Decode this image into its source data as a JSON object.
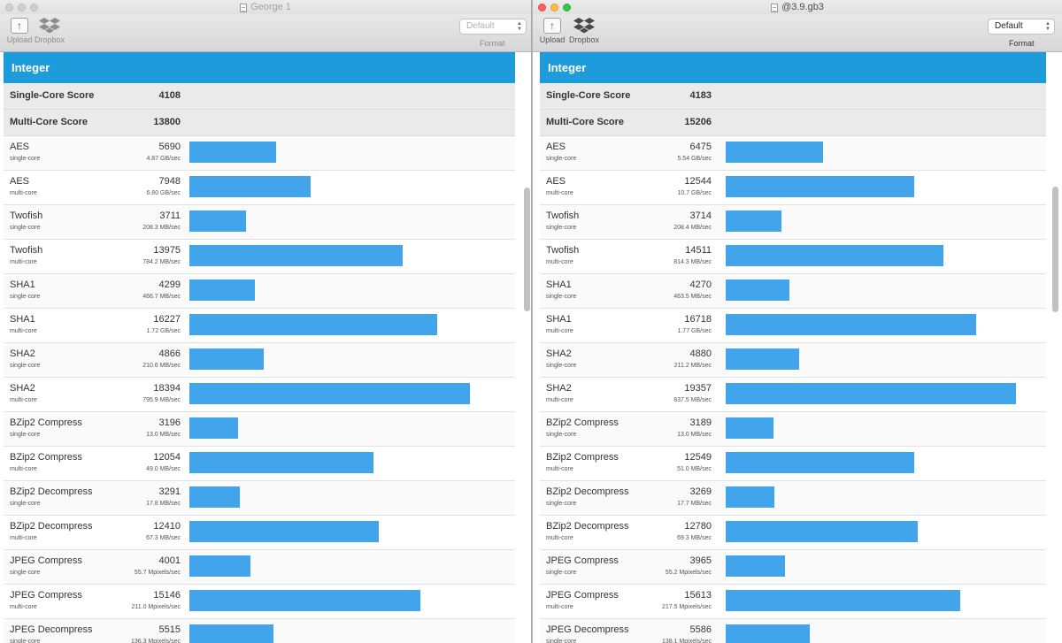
{
  "bar_scale_max": 21000,
  "colors": {
    "accent": "#1e9bdb",
    "bar": "#42a4ea"
  },
  "icons": {
    "upload": "upload-arrow-icon",
    "dropbox": "dropbox-icon",
    "document": "document-icon"
  },
  "windows": [
    {
      "title": "George 1",
      "toolbar": {
        "upload_label": "Upload",
        "dropbox_label": "Dropbox",
        "format_value": "Default",
        "format_label": "Format"
      },
      "section": "Integer",
      "single_core_label": "Single-Core Score",
      "single_core_score": "4108",
      "multi_core_label": "Multi-Core Score",
      "multi_core_score": "13800",
      "benchmarks": [
        {
          "name": "AES",
          "mode": "single-core",
          "score": "5690",
          "rate": "4.87 GB/sec"
        },
        {
          "name": "AES",
          "mode": "multi-core",
          "score": "7948",
          "rate": "6.80 GB/sec"
        },
        {
          "name": "Twofish",
          "mode": "single-core",
          "score": "3711",
          "rate": "208.3 MB/sec"
        },
        {
          "name": "Twofish",
          "mode": "multi-core",
          "score": "13975",
          "rate": "784.2 MB/sec"
        },
        {
          "name": "SHA1",
          "mode": "single-core",
          "score": "4299",
          "rate": "466.7 MB/sec"
        },
        {
          "name": "SHA1",
          "mode": "multi-core",
          "score": "16227",
          "rate": "1.72 GB/sec"
        },
        {
          "name": "SHA2",
          "mode": "single-core",
          "score": "4866",
          "rate": "210.6 MB/sec"
        },
        {
          "name": "SHA2",
          "mode": "multi-core",
          "score": "18394",
          "rate": "795.9 MB/sec"
        },
        {
          "name": "BZip2 Compress",
          "mode": "single-core",
          "score": "3196",
          "rate": "13.0 MB/sec"
        },
        {
          "name": "BZip2 Compress",
          "mode": "multi-core",
          "score": "12054",
          "rate": "49.0 MB/sec"
        },
        {
          "name": "BZip2 Decompress",
          "mode": "single-core",
          "score": "3291",
          "rate": "17.8 MB/sec"
        },
        {
          "name": "BZip2 Decompress",
          "mode": "multi-core",
          "score": "12410",
          "rate": "67.3 MB/sec"
        },
        {
          "name": "JPEG Compress",
          "mode": "single-core",
          "score": "4001",
          "rate": "55.7 Mpixels/sec"
        },
        {
          "name": "JPEG Compress",
          "mode": "multi-core",
          "score": "15146",
          "rate": "211.0 Mpixels/sec"
        },
        {
          "name": "JPEG Decompress",
          "mode": "single-core",
          "score": "5515",
          "rate": "136.3 Mpixels/sec"
        }
      ]
    },
    {
      "title": "@3.9.gb3",
      "toolbar": {
        "upload_label": "Upload",
        "dropbox_label": "Dropbox",
        "format_value": "Default",
        "format_label": "Format"
      },
      "section": "Integer",
      "single_core_label": "Single-Core Score",
      "single_core_score": "4183",
      "multi_core_label": "Multi-Core Score",
      "multi_core_score": "15206",
      "benchmarks": [
        {
          "name": "AES",
          "mode": "single-core",
          "score": "6475",
          "rate": "5.54 GB/sec"
        },
        {
          "name": "AES",
          "mode": "multi-core",
          "score": "12544",
          "rate": "10.7 GB/sec"
        },
        {
          "name": "Twofish",
          "mode": "single-core",
          "score": "3714",
          "rate": "208.4 MB/sec"
        },
        {
          "name": "Twofish",
          "mode": "multi-core",
          "score": "14511",
          "rate": "814.3 MB/sec"
        },
        {
          "name": "SHA1",
          "mode": "single-core",
          "score": "4270",
          "rate": "463.5 MB/sec"
        },
        {
          "name": "SHA1",
          "mode": "multi-core",
          "score": "16718",
          "rate": "1.77 GB/sec"
        },
        {
          "name": "SHA2",
          "mode": "single-core",
          "score": "4880",
          "rate": "211.2 MB/sec"
        },
        {
          "name": "SHA2",
          "mode": "multi-core",
          "score": "19357",
          "rate": "837.5 MB/sec"
        },
        {
          "name": "BZip2 Compress",
          "mode": "single-core",
          "score": "3189",
          "rate": "13.0 MB/sec"
        },
        {
          "name": "BZip2 Compress",
          "mode": "multi-core",
          "score": "12549",
          "rate": "51.0 MB/sec"
        },
        {
          "name": "BZip2 Decompress",
          "mode": "single-core",
          "score": "3269",
          "rate": "17.7 MB/sec"
        },
        {
          "name": "BZip2 Decompress",
          "mode": "multi-core",
          "score": "12780",
          "rate": "69.3 MB/sec"
        },
        {
          "name": "JPEG Compress",
          "mode": "single-core",
          "score": "3965",
          "rate": "55.2 Mpixels/sec"
        },
        {
          "name": "JPEG Compress",
          "mode": "multi-core",
          "score": "15613",
          "rate": "217.5 Mpixels/sec"
        },
        {
          "name": "JPEG Decompress",
          "mode": "single-core",
          "score": "5586",
          "rate": "138.1 Mpixels/sec"
        }
      ]
    }
  ]
}
